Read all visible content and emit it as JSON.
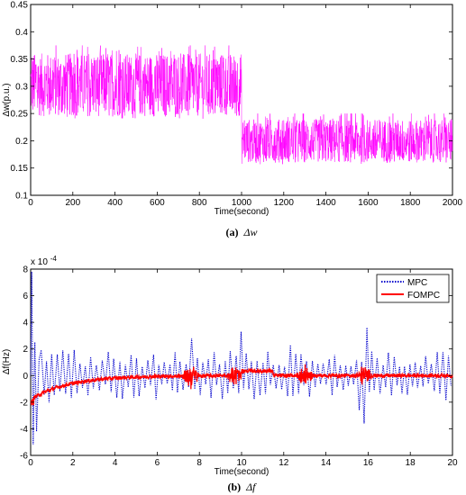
{
  "chart_data": [
    {
      "type": "line",
      "caption": {
        "label": "(a)",
        "symbol": "Δw"
      },
      "xlabel": "Time(second)",
      "ylabel": "Δw(p.u.)",
      "xlim": [
        0,
        2000
      ],
      "ylim": [
        0.1,
        0.45
      ],
      "xticks": [
        "0",
        "200",
        "400",
        "600",
        "800",
        "1000",
        "1200",
        "1400",
        "1600",
        "1800",
        "2000"
      ],
      "yticks": [
        "0.1",
        "0.15",
        "0.2",
        "0.25",
        "0.3",
        "0.35",
        "0.4",
        "0.45"
      ],
      "grid": false,
      "series": [
        {
          "color": "#ff00ff",
          "segments": [
            {
              "x_start": 0,
              "x_end": 1000,
              "mean": 0.3,
              "min": 0.23,
              "max": 0.375
            },
            {
              "x_start": 1000,
              "x_end": 2000,
              "mean": 0.2,
              "min": 0.15,
              "max": 0.25
            }
          ]
        }
      ]
    },
    {
      "type": "line",
      "caption": {
        "label": "(b)",
        "symbol": "Δf"
      },
      "xlabel": "Time(second)",
      "ylabel": "Δf(Hz)",
      "multiplier": "x 10",
      "multiplier_exp": "-4",
      "xlim": [
        0,
        20
      ],
      "ylim": [
        -6,
        8
      ],
      "xticks": [
        "0",
        "2",
        "4",
        "6",
        "8",
        "10",
        "12",
        "14",
        "16",
        "18",
        "20"
      ],
      "yticks": [
        "-6",
        "-4",
        "-2",
        "0",
        "2",
        "4",
        "6",
        "8"
      ],
      "grid": false,
      "legend": "top-right",
      "series": [
        {
          "name": "MPC",
          "color": "#0000cc",
          "style": "dotted",
          "start_peak": 7.8,
          "start_trough": -5.2,
          "typical_amplitude": 1.7,
          "spikes": [
            {
              "x": 7.6,
              "y": 2.8
            },
            {
              "x": 10.0,
              "y": 3.3
            },
            {
              "x": 12.3,
              "y": -2.3
            },
            {
              "x": 15.6,
              "y": 2.6
            },
            {
              "x": 15.8,
              "y": -3.6
            },
            {
              "x": 15.9,
              "y": 3.6
            }
          ]
        },
        {
          "name": "FOMPC",
          "color": "#ff0000",
          "style": "solid",
          "start_value": -1.8,
          "settle_value": 0.0,
          "noise_bursts": [
            {
              "x": 7.6,
              "amplitude": 1.0
            },
            {
              "x": 9.7,
              "amplitude": 0.8
            },
            {
              "x": 13.0,
              "amplitude": 0.9
            },
            {
              "x": 15.8,
              "amplitude": 0.8
            }
          ]
        }
      ]
    }
  ]
}
